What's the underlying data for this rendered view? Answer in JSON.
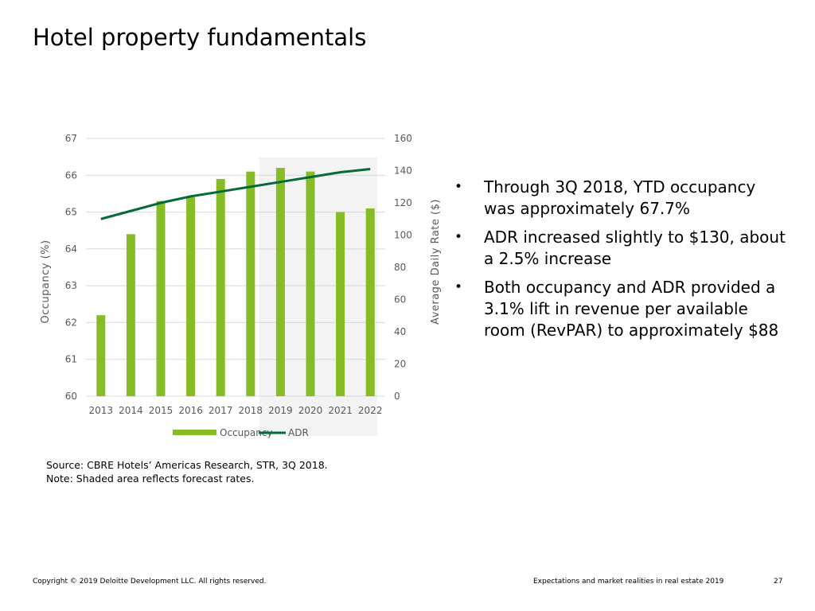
{
  "slide": {
    "title": "Hotel property fundamentals",
    "bullets": [
      "Through 3Q 2018, YTD occupancy was approximately 67.7%",
      "ADR increased slightly to $130, about a 2.5% increase",
      "Both occupancy and ADR provided a 3.1% lift in revenue per available room (RevPAR) to approximately $88"
    ],
    "bullet_symbol": "•",
    "source": "Source: CBRE Hotels’ Americas Research, STR, 3Q 2018.",
    "note": "Note: Shaded area reflects forecast rates.",
    "footer_left": "Copyright © 2019 Deloitte Development LLC. All rights reserved.",
    "footer_right": "Expectations and market realities in real estate 2019",
    "page_number": "27"
  },
  "chart_data": {
    "type": "bar",
    "categories": [
      "2013",
      "2014",
      "2015",
      "2016",
      "2017",
      "2018",
      "2019",
      "2020",
      "2021",
      "2022"
    ],
    "series": [
      {
        "name": "Occupancy",
        "type": "bar",
        "axis": "left",
        "color": "#86BC25",
        "values": [
          62.2,
          64.4,
          65.3,
          65.4,
          65.9,
          66.1,
          66.2,
          66.1,
          65.0,
          65.1
        ]
      },
      {
        "name": "ADR",
        "type": "line",
        "axis": "right",
        "color": "#046A38",
        "values": [
          110,
          115,
          120,
          124,
          127,
          130,
          133,
          136,
          139,
          141
        ]
      }
    ],
    "ylabel": "Occupancy (%)",
    "y2label": "Average Daily Rate ($)",
    "ylim": [
      60,
      67
    ],
    "y2lim": [
      0,
      160
    ],
    "yticks": [
      60,
      61,
      62,
      63,
      64,
      65,
      66,
      67
    ],
    "y2ticks": [
      0,
      20,
      40,
      60,
      80,
      100,
      120,
      140,
      160
    ],
    "forecast_categories": [
      "2019",
      "2020",
      "2021",
      "2022"
    ],
    "forecast_shade_color": "#F3F3F3",
    "grid": true,
    "legend": "bottom"
  }
}
